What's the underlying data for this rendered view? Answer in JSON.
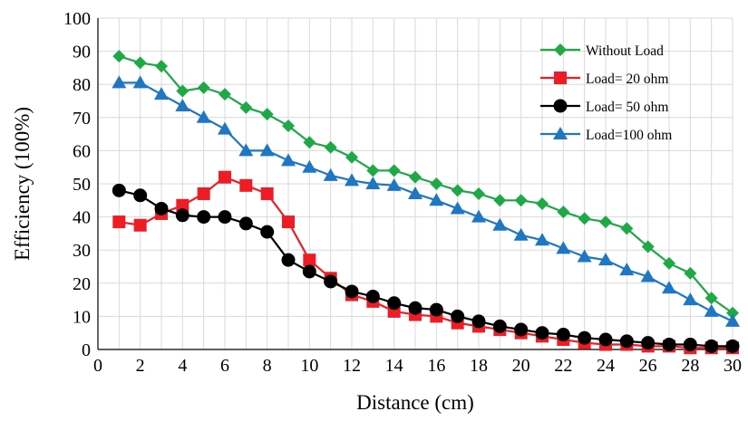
{
  "chart_data": {
    "type": "line",
    "title": "",
    "xlabel": "Distance (cm)",
    "ylabel": "Efficiency (100%)",
    "xlim": [
      0,
      30
    ],
    "ylim": [
      0,
      100
    ],
    "xticks": [
      0,
      2,
      4,
      6,
      8,
      10,
      12,
      14,
      16,
      18,
      20,
      22,
      24,
      26,
      28,
      30
    ],
    "yticks": [
      0,
      10,
      20,
      30,
      40,
      50,
      60,
      70,
      80,
      90,
      100
    ],
    "grid": "both",
    "legend_position": "top-right",
    "x": [
      1,
      2,
      3,
      4,
      5,
      6,
      7,
      8,
      9,
      10,
      11,
      12,
      13,
      14,
      15,
      16,
      17,
      18,
      19,
      20,
      21,
      22,
      23,
      24,
      25,
      26,
      27,
      28,
      29,
      30
    ],
    "series": [
      {
        "name": "Without Load",
        "color": "#1fa846",
        "marker": "diamond",
        "values": [
          88.5,
          86.5,
          85.5,
          78,
          79,
          77,
          73,
          71,
          67.5,
          62.5,
          61,
          58,
          54,
          54,
          52,
          50,
          48,
          47,
          45,
          45,
          44,
          41.5,
          39.5,
          38.5,
          36.5,
          31,
          26,
          23,
          15.5,
          11
        ]
      },
      {
        "name": "Load= 20 ohm",
        "color": "#ee1c24",
        "marker": "square",
        "values": [
          38.5,
          37.5,
          41,
          43.5,
          47,
          52,
          49.5,
          47,
          38.5,
          27,
          21.5,
          16.5,
          14.5,
          11.5,
          10.5,
          10,
          8,
          7,
          6,
          5,
          4,
          3,
          2,
          1.5,
          1.5,
          1,
          1,
          0.5,
          0.5,
          0.5
        ]
      },
      {
        "name": "Load= 50 ohm",
        "color": "#000000",
        "marker": "circle",
        "values": [
          48,
          46.5,
          42.5,
          40.5,
          40,
          40,
          38,
          35.5,
          27,
          23.5,
          20.5,
          17.5,
          16,
          14,
          12.5,
          12,
          10,
          8.5,
          7,
          6,
          5,
          4.5,
          3.5,
          3,
          2.5,
          2,
          1.5,
          1.5,
          1,
          1
        ]
      },
      {
        "name": "Load=100 ohm",
        "color": "#1f77c4",
        "marker": "triangle",
        "values": [
          80.5,
          80.5,
          77,
          73.5,
          70,
          66.5,
          60,
          60,
          57,
          55,
          52.5,
          51,
          50,
          49.5,
          47,
          45,
          42.5,
          40,
          37.5,
          34.5,
          33,
          30.5,
          28,
          27,
          24,
          22,
          18.5,
          15,
          11.5,
          8.5
        ]
      }
    ]
  }
}
